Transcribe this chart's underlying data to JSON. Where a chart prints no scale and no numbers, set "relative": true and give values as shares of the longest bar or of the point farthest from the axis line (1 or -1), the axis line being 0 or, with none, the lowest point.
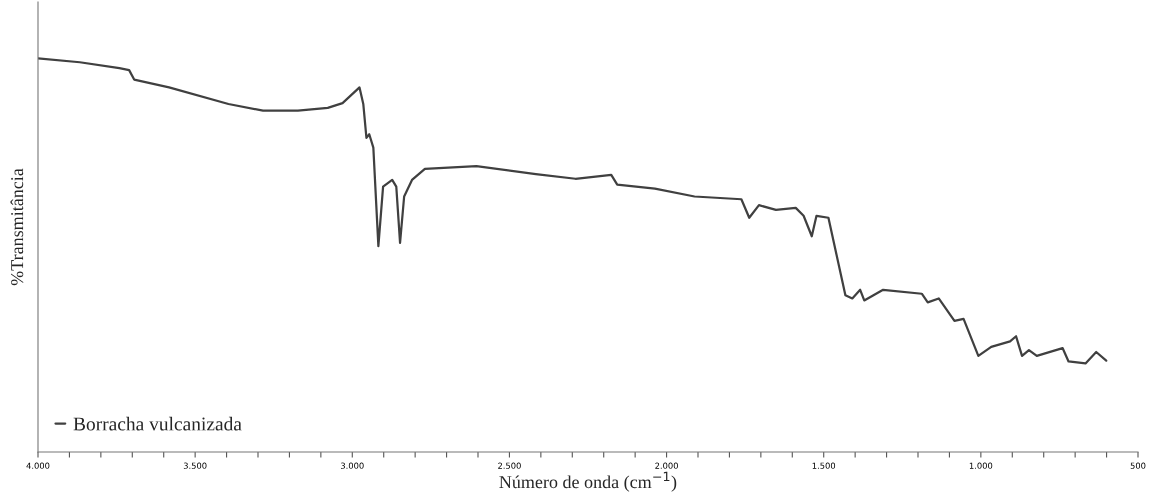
{
  "chart_data": {
    "type": "line",
    "xlabel": "Número de onda (cm$^{−1}$)",
    "ylabel": "%Transmitância",
    "relative": true,
    "legend": "bottom left",
    "grid": false,
    "marker": "none",
    "line_style": "solid",
    "xlim": [
      4000,
      500
    ],
    "xticks": [
      {
        "value": 4000,
        "label": "4.000"
      },
      {
        "value": 3900,
        "label": null
      },
      {
        "value": 3800,
        "label": null
      },
      {
        "value": 3700,
        "label": null
      },
      {
        "value": 3600,
        "label": null
      },
      {
        "value": 3500,
        "label": "3.500"
      },
      {
        "value": 3400,
        "label": null
      },
      {
        "value": 3300,
        "label": null
      },
      {
        "value": 3200,
        "label": null
      },
      {
        "value": 3100,
        "label": null
      },
      {
        "value": 3000,
        "label": "3.000"
      },
      {
        "value": 2900,
        "label": null
      },
      {
        "value": 2800,
        "label": null
      },
      {
        "value": 2700,
        "label": null
      },
      {
        "value": 2600,
        "label": null
      },
      {
        "value": 2500,
        "label": "2.500"
      },
      {
        "value": 2400,
        "label": null
      },
      {
        "value": 2300,
        "label": null
      },
      {
        "value": 2200,
        "label": null
      },
      {
        "value": 2100,
        "label": null
      },
      {
        "value": 2000,
        "label": "2.000"
      },
      {
        "value": 1900,
        "label": null
      },
      {
        "value": 1800,
        "label": null
      },
      {
        "value": 1700,
        "label": null
      },
      {
        "value": 1600,
        "label": null
      },
      {
        "value": 1500,
        "label": "1.500"
      },
      {
        "value": 1400,
        "label": null
      },
      {
        "value": 1300,
        "label": null
      },
      {
        "value": 1200,
        "label": null
      },
      {
        "value": 1100,
        "label": null
      },
      {
        "value": 1000,
        "label": "1.000"
      },
      {
        "value": 900,
        "label": null
      },
      {
        "value": 800,
        "label": null
      },
      {
        "value": 700,
        "label": null
      },
      {
        "value": 600,
        "label": null
      },
      {
        "value": 500,
        "label": "500"
      }
    ],
    "series": [
      {
        "name": "Borracha vulcanizada",
        "color": "#404040",
        "x": [
          4000,
          3867,
          3741,
          3710,
          3694,
          3583,
          3394,
          3284,
          3173,
          3078,
          3031,
          2977,
          2965,
          2955,
          2946,
          2933,
          2917,
          2902,
          2873,
          2860,
          2848,
          2835,
          2810,
          2769,
          2605,
          2416,
          2290,
          2176,
          2157,
          2037,
          1911,
          1762,
          1737,
          1706,
          1652,
          1589,
          1564,
          1538,
          1523,
          1485,
          1431,
          1409,
          1384,
          1371,
          1311,
          1188,
          1169,
          1134,
          1084,
          1055,
          1008,
          967,
          907,
          888,
          869,
          847,
          822,
          740,
          721,
          667,
          633,
          601
        ],
        "values": [
          1.0,
          0.99,
          0.975,
          0.97,
          0.946,
          0.926,
          0.884,
          0.867,
          0.867,
          0.874,
          0.886,
          0.926,
          0.884,
          0.798,
          0.807,
          0.773,
          0.523,
          0.674,
          0.691,
          0.674,
          0.531,
          0.649,
          0.691,
          0.719,
          0.726,
          0.706,
          0.694,
          0.704,
          0.679,
          0.669,
          0.649,
          0.642,
          0.595,
          0.627,
          0.615,
          0.62,
          0.6,
          0.548,
          0.6,
          0.595,
          0.398,
          0.39,
          0.412,
          0.385,
          0.412,
          0.402,
          0.38,
          0.39,
          0.333,
          0.338,
          0.244,
          0.267,
          0.281,
          0.294,
          0.244,
          0.259,
          0.244,
          0.264,
          0.23,
          0.225,
          0.254,
          0.232
        ]
      }
    ]
  }
}
